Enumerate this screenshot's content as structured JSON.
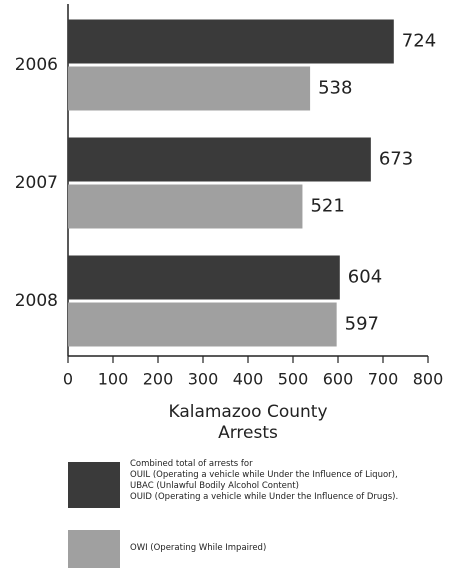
{
  "chart_data": {
    "type": "bar",
    "orientation": "horizontal",
    "categories": [
      "2006",
      "2007",
      "2008"
    ],
    "series": [
      {
        "name": "Combined total of arrests for\nOUIL (Operating a vehicle while Under the Influence of Liquor),\nUBAC (Unlawful Bodily Alcohol Content)\nOUID (Operating a vehicle while Under the Influence of Drugs).",
        "color": "#3a3a3a",
        "values": [
          724,
          673,
          604
        ]
      },
      {
        "name": "OWI (Operating While Impaired)",
        "color": "#a0a0a0",
        "values": [
          538,
          521,
          597
        ]
      }
    ],
    "xlabel": "Kalamazoo County Arrests",
    "xlim": [
      0,
      800
    ],
    "xticks": [
      0,
      100,
      200,
      300,
      400,
      500,
      600,
      700,
      800
    ]
  }
}
